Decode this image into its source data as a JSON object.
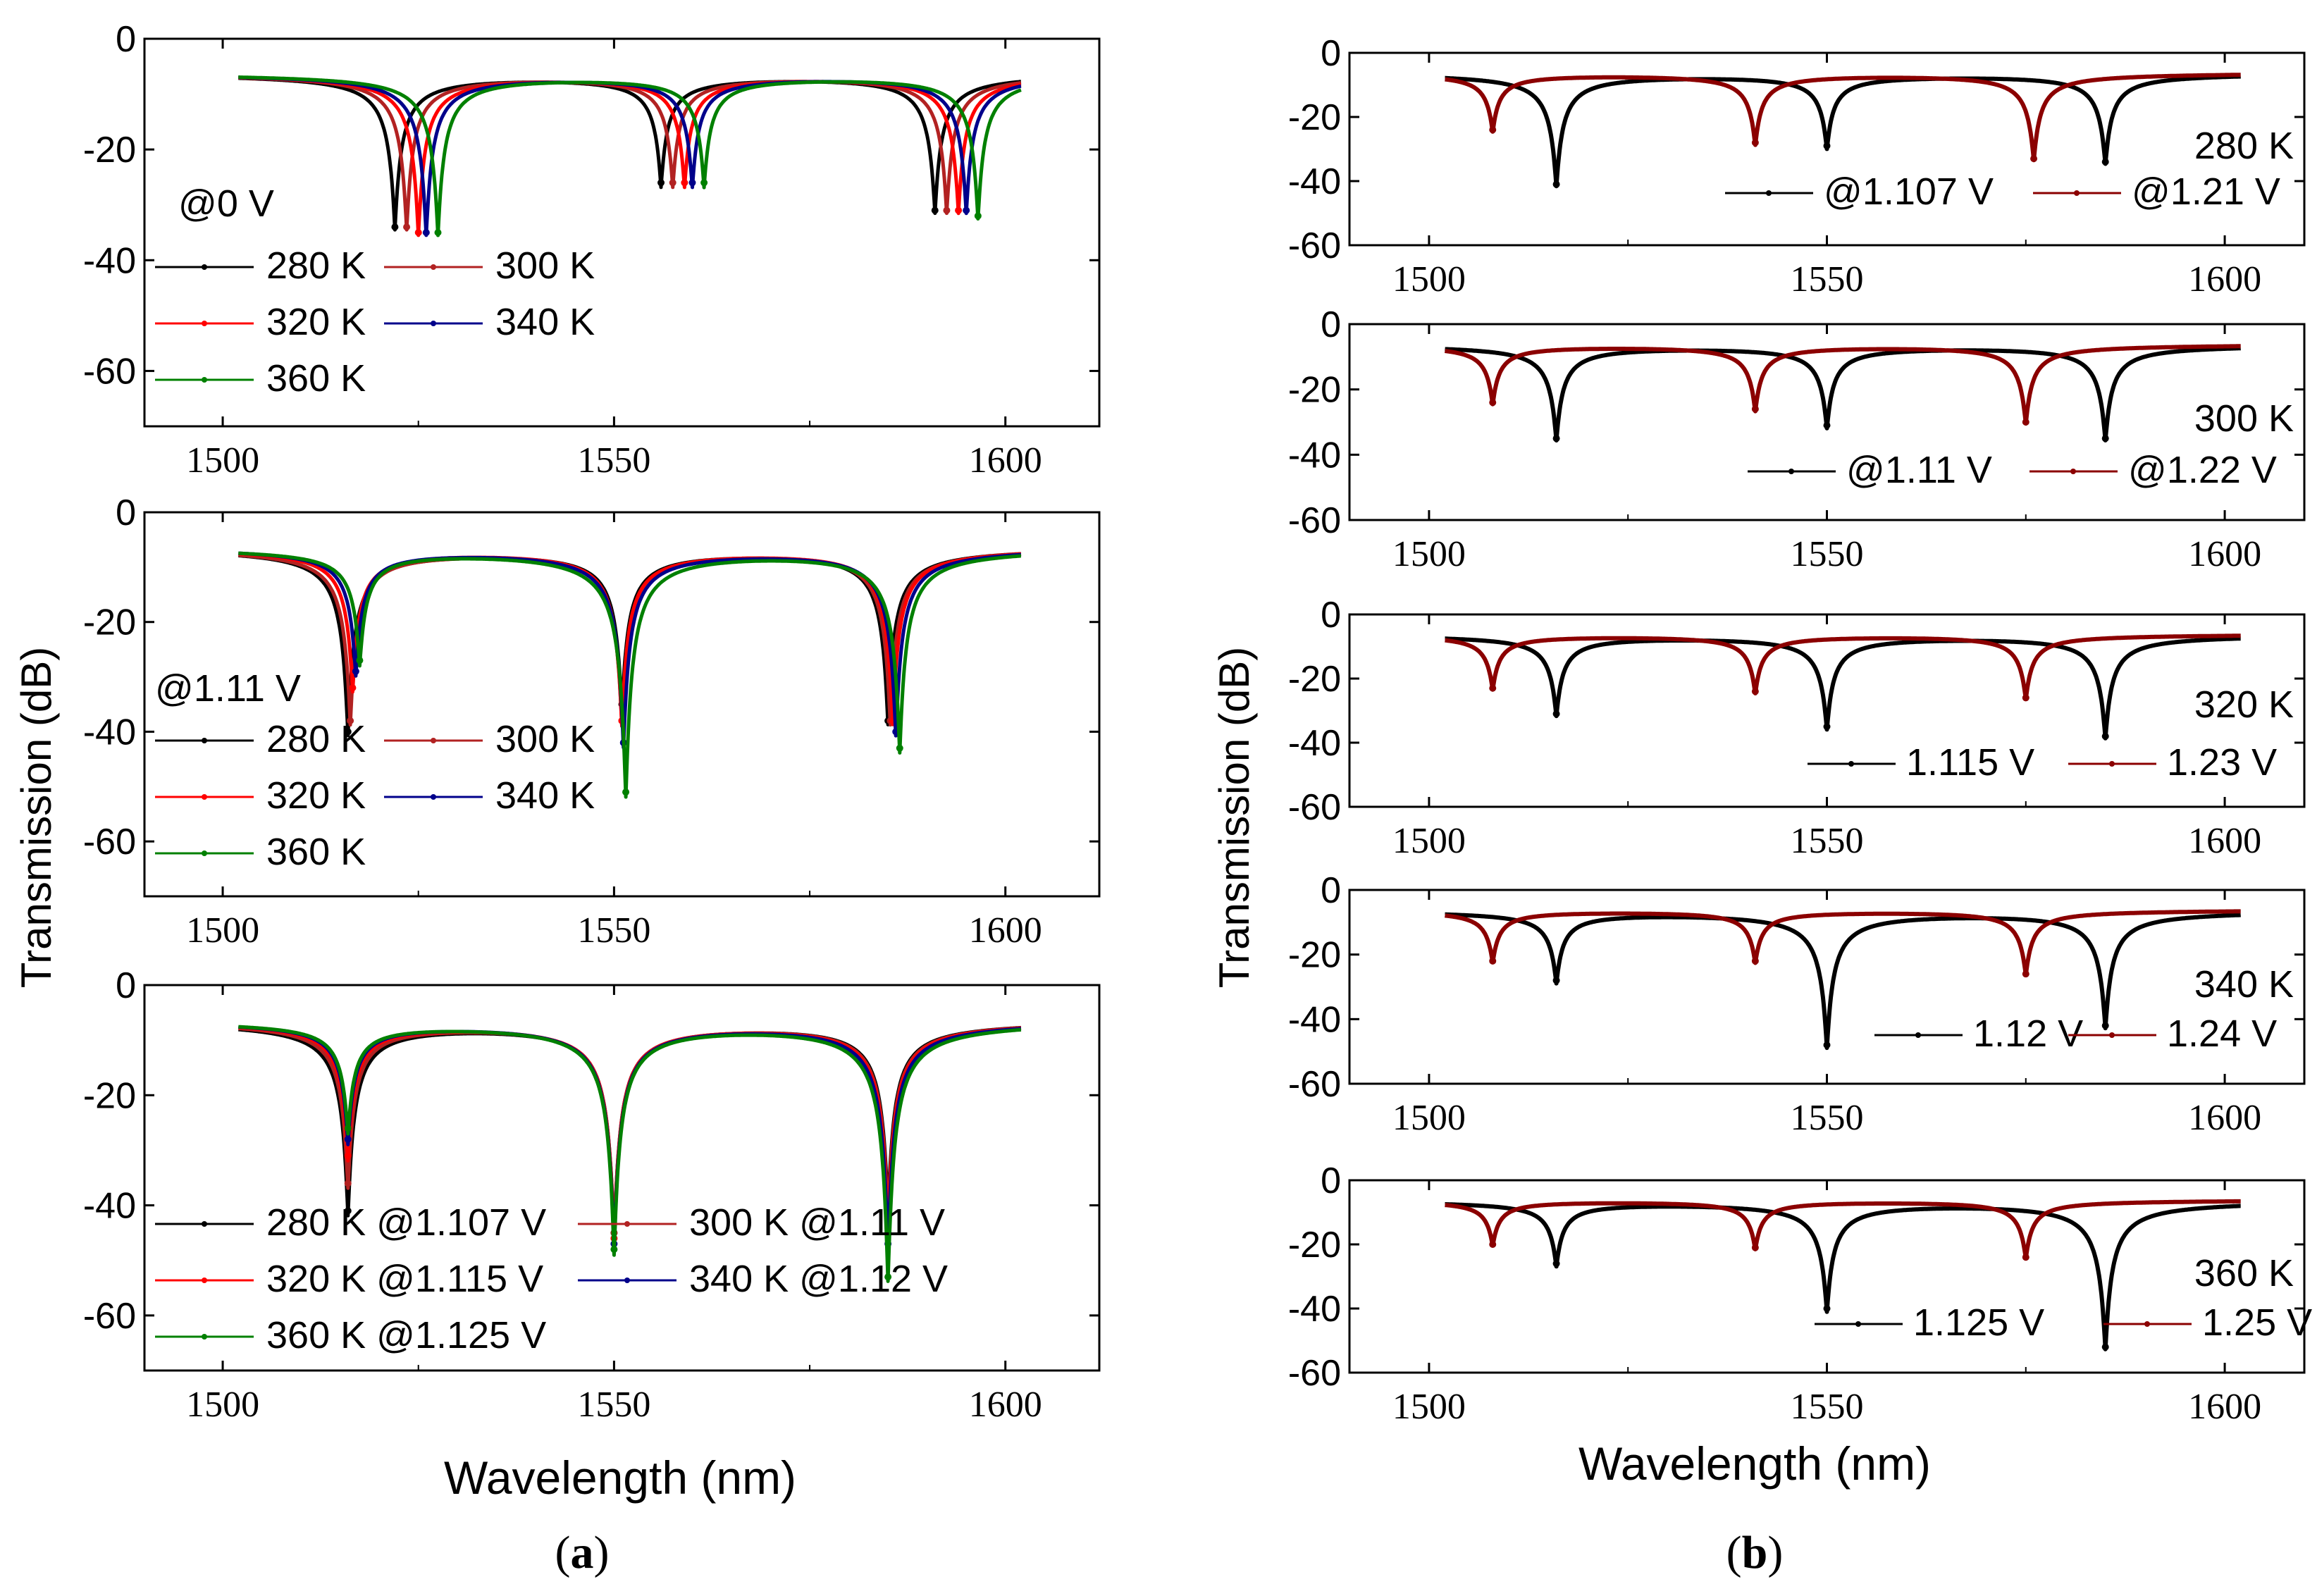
{
  "figure": {
    "ylabel": "Transmission (dB)",
    "xlabel": "Wavelength (nm)",
    "panel_a_caption": "a",
    "panel_b_caption": "b",
    "colors": {
      "c280": "#000000",
      "c300": "#b22222",
      "c320": "#ff0000",
      "c340": "#00008b",
      "c360": "#008000",
      "cb_low": "#000000",
      "cb_high": "#8b0000"
    }
  },
  "chart_data": [
    {
      "id": "a1",
      "panel": "a",
      "type": "line",
      "xlim": [
        1490,
        1612
      ],
      "ylim": [
        -70,
        0
      ],
      "xticks": [
        1500,
        1550,
        1600
      ],
      "yticks": [
        0,
        -20,
        -40,
        -60
      ],
      "annotation": "@0 V",
      "legend": [
        "280 K",
        "300 K",
        "320 K",
        "340 K",
        "360 K"
      ],
      "series": [
        {
          "name": "280 K",
          "color": "#000000",
          "dips": [
            1522,
            1556,
            1591
          ],
          "min": [
            -34,
            -26,
            -31
          ],
          "x_start": 1502,
          "x_end": 1602,
          "offset": -6
        },
        {
          "name": "300 K",
          "color": "#b22222",
          "dips": [
            1523.5,
            1557.5,
            1592.5
          ],
          "min": [
            -34,
            -26,
            -31
          ],
          "x_start": 1502,
          "x_end": 1602,
          "offset": -6
        },
        {
          "name": "320 K",
          "color": "#ff0000",
          "dips": [
            1525,
            1559,
            1594
          ],
          "min": [
            -35,
            -26,
            -31
          ],
          "x_start": 1502,
          "x_end": 1602,
          "offset": -6
        },
        {
          "name": "340 K",
          "color": "#00008b",
          "dips": [
            1526,
            1560,
            1595
          ],
          "min": [
            -35,
            -26,
            -31
          ],
          "x_start": 1502,
          "x_end": 1602,
          "offset": -6
        },
        {
          "name": "360 K",
          "color": "#008000",
          "dips": [
            1527.5,
            1561.5,
            1596.5
          ],
          "min": [
            -35,
            -26,
            -32
          ],
          "x_start": 1502,
          "x_end": 1602,
          "offset": -6
        }
      ]
    },
    {
      "id": "a2",
      "panel": "a",
      "type": "line",
      "xlim": [
        1490,
        1612
      ],
      "ylim": [
        -70,
        0
      ],
      "xticks": [
        1500,
        1550,
        1600
      ],
      "yticks": [
        0,
        -20,
        -40,
        -60
      ],
      "annotation": "@1.11 V",
      "legend": [
        "280 K",
        "300 K",
        "320 K",
        "340 K",
        "360 K"
      ],
      "series": [
        {
          "name": "280 K",
          "color": "#000000",
          "dips": [
            1516,
            1551,
            1585
          ],
          "min": [
            -40,
            -35,
            -38
          ],
          "x_start": 1502,
          "x_end": 1602,
          "offset": -6
        },
        {
          "name": "300 K",
          "color": "#b22222",
          "dips": [
            1516.3,
            1551,
            1585.3
          ],
          "min": [
            -38,
            -38,
            -38
          ],
          "x_start": 1502,
          "x_end": 1602,
          "offset": -6
        },
        {
          "name": "320 K",
          "color": "#ff0000",
          "dips": [
            1516.6,
            1551,
            1585.6
          ],
          "min": [
            -32,
            -38,
            -38
          ],
          "x_start": 1502,
          "x_end": 1602,
          "offset": -6
        },
        {
          "name": "340 K",
          "color": "#00008b",
          "dips": [
            1517,
            1551.2,
            1586
          ],
          "min": [
            -29,
            -42,
            -40
          ],
          "x_start": 1502,
          "x_end": 1602,
          "offset": -6
        },
        {
          "name": "360 K",
          "color": "#008000",
          "dips": [
            1517.5,
            1551.5,
            1586.5
          ],
          "min": [
            -27,
            -51,
            -43
          ],
          "x_start": 1502,
          "x_end": 1602,
          "offset": -6
        }
      ]
    },
    {
      "id": "a3",
      "panel": "a",
      "type": "line",
      "xlim": [
        1490,
        1612
      ],
      "ylim": [
        -70,
        0
      ],
      "xticks": [
        1500,
        1550,
        1600
      ],
      "yticks": [
        0,
        -20,
        -40,
        -60
      ],
      "annotation": "",
      "legend": [
        "280 K @1.107 V",
        "300 K @1.11 V",
        "320 K @1.115 V",
        "340 K @1.12 V",
        "360 K @1.125 V"
      ],
      "series": [
        {
          "name": "280 K @1.107 V",
          "color": "#000000",
          "dips": [
            1516,
            1550,
            1585
          ],
          "min": [
            -41,
            -45,
            -40
          ],
          "x_start": 1502,
          "x_end": 1602,
          "offset": -6
        },
        {
          "name": "300 K @1.11 V",
          "color": "#b22222",
          "dips": [
            1516,
            1550,
            1585
          ],
          "min": [
            -36,
            -45,
            -42
          ],
          "x_start": 1502,
          "x_end": 1602,
          "offset": -6
        },
        {
          "name": "320 K @1.115 V",
          "color": "#ff0000",
          "dips": [
            1516,
            1550,
            1585
          ],
          "min": [
            -31,
            -46,
            -44
          ],
          "x_start": 1502,
          "x_end": 1602,
          "offset": -6
        },
        {
          "name": "340 K @1.12 V",
          "color": "#00008b",
          "dips": [
            1516,
            1550,
            1585
          ],
          "min": [
            -28,
            -47,
            -47
          ],
          "x_start": 1502,
          "x_end": 1602,
          "offset": -6
        },
        {
          "name": "360 K @1.125 V",
          "color": "#008000",
          "dips": [
            1516,
            1550,
            1585
          ],
          "min": [
            -26,
            -48,
            -53
          ],
          "x_start": 1502,
          "x_end": 1602,
          "offset": -6
        }
      ]
    },
    {
      "id": "b1",
      "panel": "b",
      "type": "line",
      "xlim": [
        1490,
        1610
      ],
      "ylim": [
        -60,
        0
      ],
      "xticks": [
        1500,
        1550,
        1600
      ],
      "yticks": [
        0,
        -20,
        -40,
        -60
      ],
      "annotation": "280 K",
      "legend": [
        "@1.107 V",
        "@1.21 V"
      ],
      "series": [
        {
          "name": "@1.107 V",
          "color": "#000000",
          "dips": [
            1516,
            1550,
            1585
          ],
          "min": [
            -41,
            -29,
            -34
          ],
          "x_start": 1502,
          "x_end": 1602,
          "offset": -6
        },
        {
          "name": "@1.21 V",
          "color": "#8b0000",
          "dips": [
            1508,
            1541,
            1576
          ],
          "min": [
            -24,
            -28,
            -33
          ],
          "x_start": 1502,
          "x_end": 1602,
          "offset": -6
        }
      ]
    },
    {
      "id": "b2",
      "panel": "b",
      "type": "line",
      "xlim": [
        1490,
        1610
      ],
      "ylim": [
        -60,
        0
      ],
      "xticks": [
        1500,
        1550,
        1600
      ],
      "yticks": [
        0,
        -20,
        -40,
        -60
      ],
      "annotation": "300 K",
      "legend": [
        "@1.11 V",
        "@1.22 V"
      ],
      "series": [
        {
          "name": "@1.11 V",
          "color": "#000000",
          "dips": [
            1516,
            1550,
            1585
          ],
          "min": [
            -35,
            -31,
            -35
          ],
          "x_start": 1502,
          "x_end": 1602,
          "offset": -6
        },
        {
          "name": "@1.22 V",
          "color": "#8b0000",
          "dips": [
            1508,
            1541,
            1575
          ],
          "min": [
            -24,
            -26,
            -30
          ],
          "x_start": 1502,
          "x_end": 1602,
          "offset": -6
        }
      ]
    },
    {
      "id": "b3",
      "panel": "b",
      "type": "line",
      "xlim": [
        1490,
        1610
      ],
      "ylim": [
        -60,
        0
      ],
      "xticks": [
        1500,
        1550,
        1600
      ],
      "yticks": [
        0,
        -20,
        -40,
        -60
      ],
      "annotation": "320 K",
      "legend": [
        "1.115 V",
        "1.23 V"
      ],
      "series": [
        {
          "name": "1.115 V",
          "color": "#000000",
          "dips": [
            1516,
            1550,
            1585
          ],
          "min": [
            -31,
            -35,
            -38
          ],
          "x_start": 1502,
          "x_end": 1602,
          "offset": -6
        },
        {
          "name": "1.23 V",
          "color": "#8b0000",
          "dips": [
            1508,
            1541,
            1575
          ],
          "min": [
            -23,
            -24,
            -26
          ],
          "x_start": 1502,
          "x_end": 1602,
          "offset": -6
        }
      ]
    },
    {
      "id": "b4",
      "panel": "b",
      "type": "line",
      "xlim": [
        1490,
        1610
      ],
      "ylim": [
        -60,
        0
      ],
      "xticks": [
        1500,
        1550,
        1600
      ],
      "yticks": [
        0,
        -20,
        -40,
        -60
      ],
      "annotation": "340 K",
      "legend": [
        "1.12 V",
        "1.24 V"
      ],
      "series": [
        {
          "name": "1.12 V",
          "color": "#000000",
          "dips": [
            1516,
            1550,
            1585
          ],
          "min": [
            -28,
            -48,
            -42
          ],
          "x_start": 1502,
          "x_end": 1602,
          "offset": -6
        },
        {
          "name": "1.24 V",
          "color": "#8b0000",
          "dips": [
            1508,
            1541,
            1575
          ],
          "min": [
            -22,
            -22,
            -26
          ],
          "x_start": 1502,
          "x_end": 1602,
          "offset": -6
        }
      ]
    },
    {
      "id": "b5",
      "panel": "b",
      "type": "line",
      "xlim": [
        1490,
        1610
      ],
      "ylim": [
        -60,
        0
      ],
      "xticks": [
        1500,
        1550,
        1600
      ],
      "yticks": [
        0,
        -20,
        -40,
        -60
      ],
      "annotation": "360 K",
      "legend": [
        "1.125 V",
        "1.25 V"
      ],
      "series": [
        {
          "name": "1.125 V",
          "color": "#000000",
          "dips": [
            1516,
            1550,
            1585
          ],
          "min": [
            -26,
            -40,
            -52
          ],
          "x_start": 1502,
          "x_end": 1602,
          "offset": -6
        },
        {
          "name": "1.25 V",
          "color": "#8b0000",
          "dips": [
            1508,
            1541,
            1575
          ],
          "min": [
            -20,
            -21,
            -24
          ],
          "x_start": 1502,
          "x_end": 1602,
          "offset": -6
        }
      ]
    }
  ]
}
